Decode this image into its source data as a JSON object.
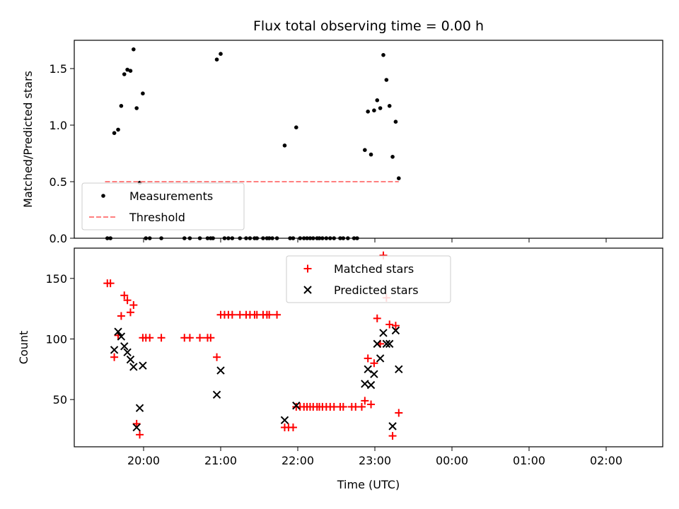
{
  "chart_data": [
    {
      "type": "scatter",
      "title": "Flux total observing time = 0.00 h",
      "xlabel": "",
      "ylabel": "Matched/Predicted stars",
      "x_unit": "hours_utc_from_midnight",
      "x_ticks": [
        -4,
        -3,
        -2,
        -1,
        0,
        1,
        2
      ],
      "ylim": [
        0,
        1.75
      ],
      "y_ticks": [
        0.0,
        0.5,
        1.0,
        1.5
      ],
      "y_tick_labels": [
        "0.0",
        "0.5",
        "1.0",
        "1.5"
      ],
      "legend_position": "lower-left",
      "series": [
        {
          "name": "Measurements",
          "kind": "scatter",
          "marker": "dot",
          "color": "#000000",
          "points": [
            [
              -4.47,
              0.0
            ],
            [
              -4.43,
              0.0
            ],
            [
              -4.38,
              0.93
            ],
            [
              -4.33,
              0.96
            ],
            [
              -4.29,
              1.17
            ],
            [
              -4.25,
              1.45
            ],
            [
              -4.21,
              1.49
            ],
            [
              -4.17,
              1.48
            ],
            [
              -4.13,
              1.67
            ],
            [
              -4.09,
              1.15
            ],
            [
              -4.05,
              0.49
            ],
            [
              -4.01,
              1.28
            ],
            [
              -3.97,
              0.0
            ],
            [
              -3.92,
              0.0
            ],
            [
              -3.77,
              0.0
            ],
            [
              -3.47,
              0.0
            ],
            [
              -3.4,
              0.0
            ],
            [
              -3.27,
              0.0
            ],
            [
              -3.17,
              0.0
            ],
            [
              -3.13,
              0.0
            ],
            [
              -3.1,
              0.0
            ],
            [
              -3.05,
              1.58
            ],
            [
              -3.0,
              1.63
            ],
            [
              -2.95,
              0.0
            ],
            [
              -2.9,
              0.0
            ],
            [
              -2.85,
              0.0
            ],
            [
              -2.75,
              0.0
            ],
            [
              -2.67,
              0.0
            ],
            [
              -2.62,
              0.0
            ],
            [
              -2.56,
              0.0
            ],
            [
              -2.53,
              0.0
            ],
            [
              -2.45,
              0.0
            ],
            [
              -2.4,
              0.0
            ],
            [
              -2.37,
              0.0
            ],
            [
              -2.33,
              0.0
            ],
            [
              -2.27,
              0.0
            ],
            [
              -2.17,
              0.82
            ],
            [
              -2.1,
              0.0
            ],
            [
              -2.06,
              0.0
            ],
            [
              -2.02,
              0.98
            ],
            [
              -1.97,
              0.0
            ],
            [
              -1.92,
              0.0
            ],
            [
              -1.88,
              0.0
            ],
            [
              -1.84,
              0.0
            ],
            [
              -1.8,
              0.0
            ],
            [
              -1.75,
              0.0
            ],
            [
              -1.72,
              0.0
            ],
            [
              -1.68,
              0.0
            ],
            [
              -1.63,
              0.0
            ],
            [
              -1.58,
              0.0
            ],
            [
              -1.53,
              0.0
            ],
            [
              -1.45,
              0.0
            ],
            [
              -1.41,
              0.0
            ],
            [
              -1.35,
              0.0
            ],
            [
              -1.27,
              0.0
            ],
            [
              -1.23,
              0.0
            ],
            [
              -1.13,
              0.78
            ],
            [
              -1.09,
              1.12
            ],
            [
              -1.05,
              0.74
            ],
            [
              -1.01,
              1.13
            ],
            [
              -0.97,
              1.22
            ],
            [
              -0.93,
              1.15
            ],
            [
              -0.89,
              1.62
            ],
            [
              -0.85,
              1.4
            ],
            [
              -0.81,
              1.17
            ],
            [
              -0.77,
              0.72
            ],
            [
              -0.73,
              1.03
            ],
            [
              -0.69,
              0.53
            ]
          ]
        },
        {
          "name": "Threshold",
          "kind": "dashed-line",
          "color": "#ff7f7f",
          "x": [
            -4.5,
            -0.69
          ],
          "y": [
            0.5,
            0.5
          ]
        }
      ]
    },
    {
      "type": "scatter",
      "title": "",
      "xlabel": "Time (UTC)",
      "ylabel": "Count",
      "x_ticks": [
        -4,
        -3,
        -2,
        -1,
        0,
        1,
        2
      ],
      "x_tick_labels": [
        "20:00",
        "21:00",
        "22:00",
        "23:00",
        "00:00",
        "01:00",
        "02:00"
      ],
      "ylim": [
        11,
        175
      ],
      "y_ticks": [
        50,
        100,
        150
      ],
      "y_tick_labels": [
        "50",
        "100",
        "150"
      ],
      "legend_position": "upper-center",
      "series": [
        {
          "name": "Matched stars",
          "kind": "scatter",
          "marker": "plus",
          "color": "#ff0000",
          "points": [
            [
              -4.47,
              146
            ],
            [
              -4.43,
              146
            ],
            [
              -4.38,
              85
            ],
            [
              -4.33,
              103
            ],
            [
              -4.29,
              119
            ],
            [
              -4.25,
              136
            ],
            [
              -4.21,
              132
            ],
            [
              -4.17,
              122
            ],
            [
              -4.13,
              128
            ],
            [
              -4.09,
              30
            ],
            [
              -4.05,
              21
            ],
            [
              -4.01,
              101
            ],
            [
              -3.97,
              101
            ],
            [
              -3.92,
              101
            ],
            [
              -3.77,
              101
            ],
            [
              -3.47,
              101
            ],
            [
              -3.4,
              101
            ],
            [
              -3.27,
              101
            ],
            [
              -3.17,
              101
            ],
            [
              -3.13,
              101
            ],
            [
              -3.05,
              85
            ],
            [
              -3.0,
              120
            ],
            [
              -2.95,
              120
            ],
            [
              -2.9,
              120
            ],
            [
              -2.85,
              120
            ],
            [
              -2.75,
              120
            ],
            [
              -2.67,
              120
            ],
            [
              -2.62,
              120
            ],
            [
              -2.56,
              120
            ],
            [
              -2.53,
              120
            ],
            [
              -2.45,
              120
            ],
            [
              -2.4,
              120
            ],
            [
              -2.37,
              120
            ],
            [
              -2.27,
              120
            ],
            [
              -2.17,
              27
            ],
            [
              -2.12,
              27
            ],
            [
              -2.06,
              27
            ],
            [
              -2.02,
              44
            ],
            [
              -1.97,
              44
            ],
            [
              -1.92,
              44
            ],
            [
              -1.88,
              44
            ],
            [
              -1.84,
              44
            ],
            [
              -1.8,
              44
            ],
            [
              -1.75,
              44
            ],
            [
              -1.72,
              44
            ],
            [
              -1.68,
              44
            ],
            [
              -1.63,
              44
            ],
            [
              -1.58,
              44
            ],
            [
              -1.53,
              44
            ],
            [
              -1.45,
              44
            ],
            [
              -1.41,
              44
            ],
            [
              -1.3,
              44
            ],
            [
              -1.25,
              44
            ],
            [
              -1.17,
              44
            ],
            [
              -1.13,
              49
            ],
            [
              -1.09,
              84
            ],
            [
              -1.05,
              46
            ],
            [
              -1.01,
              80
            ],
            [
              -0.97,
              117
            ],
            [
              -0.93,
              96
            ],
            [
              -0.89,
              169
            ],
            [
              -0.85,
              134
            ],
            [
              -0.81,
              112
            ],
            [
              -0.77,
              20
            ],
            [
              -0.73,
              111
            ],
            [
              -0.69,
              39
            ]
          ]
        },
        {
          "name": "Predicted stars",
          "kind": "scatter",
          "marker": "cross",
          "color": "#000000",
          "points": [
            [
              -4.38,
              91
            ],
            [
              -4.33,
              106
            ],
            [
              -4.29,
              102
            ],
            [
              -4.25,
              94
            ],
            [
              -4.21,
              89
            ],
            [
              -4.17,
              83
            ],
            [
              -4.13,
              77
            ],
            [
              -4.09,
              27
            ],
            [
              -4.05,
              43
            ],
            [
              -4.01,
              78
            ],
            [
              -3.05,
              54
            ],
            [
              -3.0,
              74
            ],
            [
              -2.17,
              33
            ],
            [
              -2.02,
              45
            ],
            [
              -1.13,
              63
            ],
            [
              -1.09,
              75
            ],
            [
              -1.05,
              62
            ],
            [
              -1.01,
              71
            ],
            [
              -0.97,
              96
            ],
            [
              -0.93,
              84
            ],
            [
              -0.89,
              105
            ],
            [
              -0.85,
              96
            ],
            [
              -0.81,
              96
            ],
            [
              -0.77,
              28
            ],
            [
              -0.73,
              107
            ],
            [
              -0.69,
              75
            ]
          ]
        }
      ]
    }
  ]
}
